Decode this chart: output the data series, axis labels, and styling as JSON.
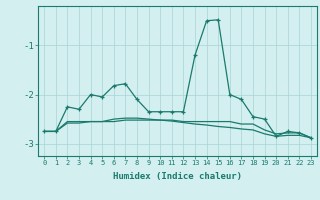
{
  "xlabel": "Humidex (Indice chaleur)",
  "ylabel": "",
  "background_color": "#d4efef",
  "line_color": "#1a7a6e",
  "grid_color": "#a8d4d4",
  "x_values": [
    0,
    1,
    2,
    3,
    4,
    5,
    6,
    7,
    8,
    9,
    10,
    11,
    12,
    13,
    14,
    15,
    16,
    17,
    18,
    19,
    20,
    21,
    22,
    23
  ],
  "series1": [
    -2.75,
    -2.75,
    -2.25,
    -2.3,
    -2.0,
    -2.05,
    -1.82,
    -1.78,
    -2.1,
    -2.35,
    -2.35,
    -2.35,
    -2.35,
    -1.2,
    -0.5,
    -0.48,
    -2.0,
    -2.1,
    -2.45,
    -2.5,
    -2.85,
    -2.75,
    -2.78,
    -2.88
  ],
  "series2": [
    -2.75,
    -2.75,
    -2.55,
    -2.55,
    -2.55,
    -2.55,
    -2.55,
    -2.52,
    -2.52,
    -2.52,
    -2.52,
    -2.52,
    -2.55,
    -2.55,
    -2.55,
    -2.55,
    -2.55,
    -2.6,
    -2.6,
    -2.72,
    -2.8,
    -2.78,
    -2.78,
    -2.88
  ],
  "series3": [
    -2.75,
    -2.75,
    -2.58,
    -2.58,
    -2.55,
    -2.55,
    -2.5,
    -2.48,
    -2.48,
    -2.5,
    -2.52,
    -2.54,
    -2.57,
    -2.6,
    -2.62,
    -2.65,
    -2.67,
    -2.7,
    -2.72,
    -2.8,
    -2.85,
    -2.83,
    -2.83,
    -2.88
  ],
  "ylim": [
    -3.25,
    -0.2
  ],
  "yticks": [
    -3.0,
    -2.0,
    -1.0
  ],
  "ytick_labels": [
    "-3",
    "-2",
    "-1"
  ],
  "xtick_labels": [
    "0",
    "1",
    "2",
    "3",
    "4",
    "5",
    "6",
    "7",
    "8",
    "9",
    "10",
    "11",
    "12",
    "13",
    "14",
    "15",
    "16",
    "17",
    "18",
    "19",
    "20",
    "21",
    "22",
    "23"
  ]
}
